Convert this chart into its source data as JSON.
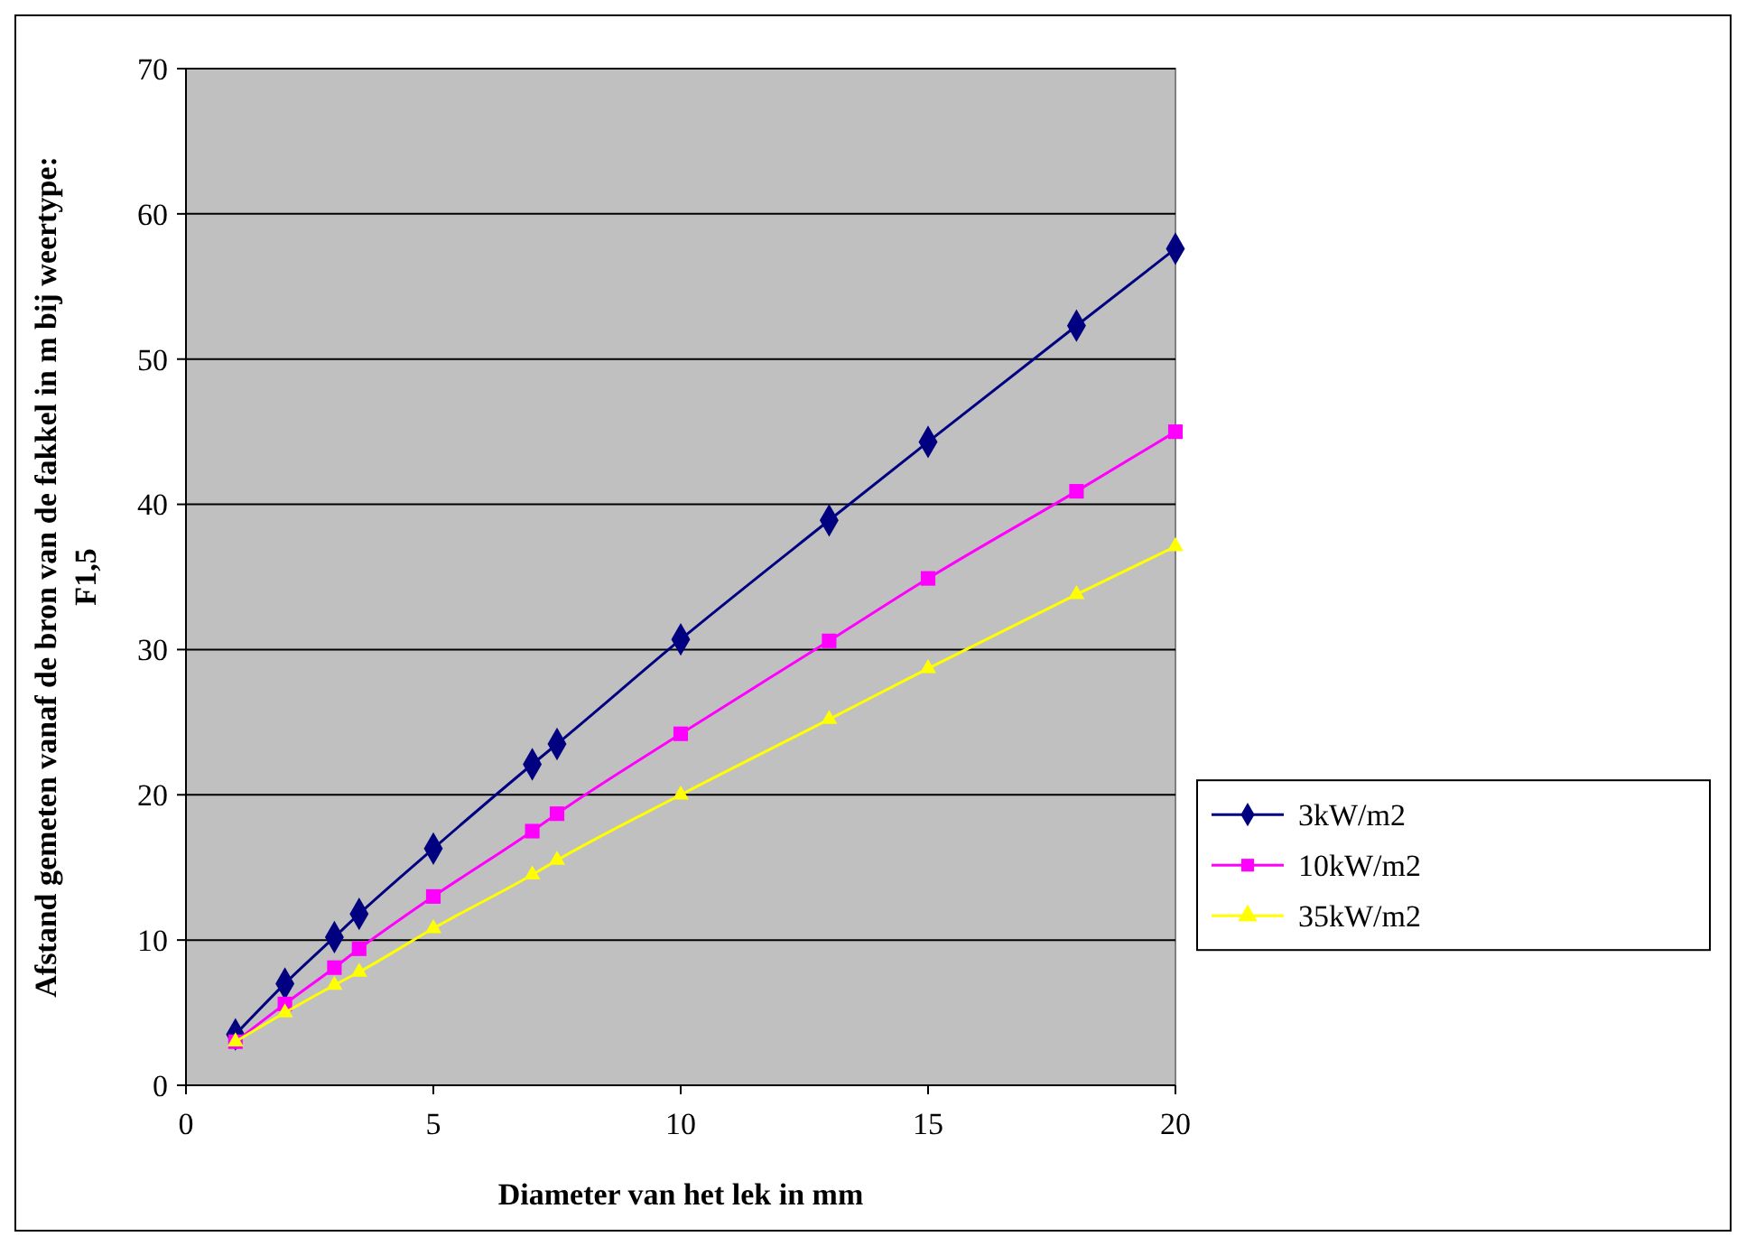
{
  "chart_data": {
    "type": "line",
    "xlabel": "Diameter van het lek in mm",
    "ylabel": "Afstand gemeten vanaf de bron van de fakkel in m bij weertype: F1,5",
    "x": [
      1,
      2,
      3,
      3.5,
      5,
      7,
      7.5,
      10,
      13,
      15,
      18,
      20
    ],
    "series": [
      {
        "name": "3kW/m2",
        "color": "#000080",
        "marker": "diamond",
        "values": [
          3.5,
          7.0,
          10.2,
          11.8,
          16.3,
          22.1,
          23.5,
          30.7,
          38.9,
          44.3,
          52.3,
          57.6
        ]
      },
      {
        "name": "10kW/m2",
        "color": "#ff00ff",
        "marker": "square",
        "values": [
          3.0,
          5.6,
          8.1,
          9.4,
          13.0,
          17.5,
          18.7,
          24.2,
          30.6,
          34.9,
          40.9,
          45.0
        ]
      },
      {
        "name": "35kW/m2",
        "color": "#ffff00",
        "marker": "triangle",
        "values": [
          3.0,
          5.0,
          6.9,
          7.8,
          10.8,
          14.5,
          15.5,
          20.0,
          25.2,
          28.7,
          33.8,
          37.1
        ]
      }
    ],
    "xlim": [
      0,
      20
    ],
    "xticks": [
      0,
      5,
      10,
      15,
      20
    ],
    "ylim": [
      0,
      70
    ],
    "yticks": [
      0,
      10,
      20,
      30,
      40,
      50,
      60,
      70
    ],
    "grid": "y",
    "legend": "right",
    "line_style": "solid"
  }
}
